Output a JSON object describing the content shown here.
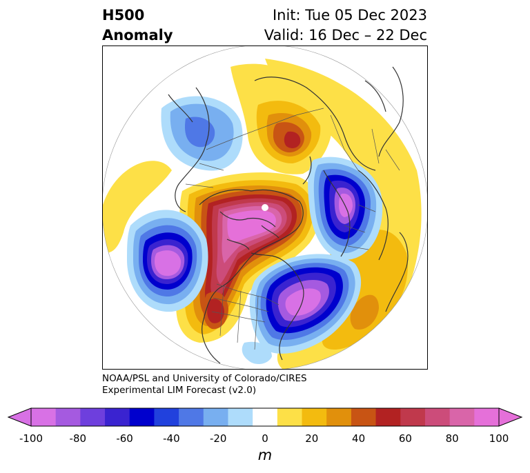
{
  "header": {
    "title_line1": "H500",
    "title_line2": "Anomaly",
    "init_label": "Init: Tue 05 Dec 2023",
    "valid_label": "Valid: 16 Dec – 22 Dec"
  },
  "credit": {
    "line1": "NOAA/PSL and University of Colorado/CIRES",
    "line2": "Experimental LIM Forecast (v2.0)"
  },
  "colorbar": {
    "unit": "m",
    "extend": "both",
    "ticks": [
      "-100",
      "-80",
      "-60",
      "-40",
      "-20",
      "0",
      "20",
      "40",
      "60",
      "80",
      "100"
    ],
    "levels": [
      -100,
      -90,
      -80,
      -70,
      -60,
      -50,
      -40,
      -30,
      -20,
      -10,
      10,
      20,
      30,
      40,
      50,
      60,
      70,
      80,
      90,
      100
    ],
    "colors": [
      "#d871e5",
      "#a55ae0",
      "#6e3fdd",
      "#3a23d0",
      "#0000cd",
      "#2141dd",
      "#4f78e6",
      "#78aff0",
      "#aedcfb",
      "#ffffff",
      "#fde047",
      "#f3bb0f",
      "#e1900c",
      "#c85414",
      "#b22222",
      "#c0394c",
      "#cc4c7a",
      "#d965a9",
      "#e570d9"
    ],
    "under_color": "#d871e5",
    "over_color": "#e570d9"
  },
  "map": {
    "projection": "north-polar-stereographic",
    "variable": "500 hPa geopotential height anomaly"
  }
}
